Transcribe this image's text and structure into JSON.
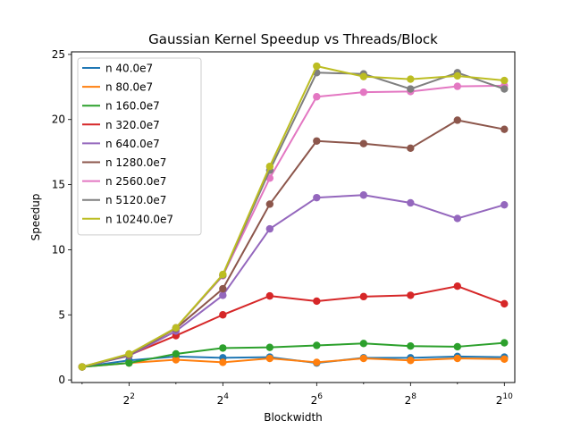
{
  "chart_data": {
    "type": "line",
    "title": "Gaussian Kernel Speedup vs Threads/Block",
    "xlabel": "Blockwidth",
    "ylabel": "Speedup",
    "x_scale": "log2",
    "x": [
      2,
      4,
      8,
      16,
      32,
      64,
      128,
      256,
      512,
      1024
    ],
    "xlim": [
      1.71,
      1195
    ],
    "ylim": [
      -0.2,
      25.2
    ],
    "x_ticks": [
      {
        "value": 4,
        "base": "2",
        "exp": "2"
      },
      {
        "value": 16,
        "base": "2",
        "exp": "4"
      },
      {
        "value": 64,
        "base": "2",
        "exp": "6"
      },
      {
        "value": 256,
        "base": "2",
        "exp": "8"
      },
      {
        "value": 1024,
        "base": "2",
        "exp": "10"
      }
    ],
    "y_ticks": [
      0,
      5,
      10,
      15,
      20,
      25
    ],
    "grid": false,
    "legend_position": "upper left",
    "series": [
      {
        "name": "n 40.0e7",
        "color": "#1f77b4",
        "values": [
          1.0,
          1.5,
          1.8,
          1.7,
          1.75,
          1.3,
          1.7,
          1.7,
          1.8,
          1.75
        ]
      },
      {
        "name": "n 80.0e7",
        "color": "#ff7f0e",
        "values": [
          1.0,
          1.3,
          1.55,
          1.35,
          1.65,
          1.35,
          1.65,
          1.5,
          1.65,
          1.6
        ]
      },
      {
        "name": "n 160.0e7",
        "color": "#2ca02c",
        "values": [
          1.0,
          1.3,
          2.0,
          2.45,
          2.5,
          2.65,
          2.8,
          2.6,
          2.55,
          2.85
        ]
      },
      {
        "name": "n 320.0e7",
        "color": "#d62728",
        "values": [
          1.0,
          1.9,
          3.4,
          5.0,
          6.45,
          6.05,
          6.4,
          6.5,
          7.2,
          5.85
        ]
      },
      {
        "name": "n 640.0e7",
        "color": "#9467bd",
        "values": [
          1.0,
          1.85,
          3.75,
          6.5,
          11.6,
          14.0,
          14.2,
          13.6,
          12.4,
          13.45
        ]
      },
      {
        "name": "n 1280.0e7",
        "color": "#8c564b",
        "values": [
          1.0,
          1.9,
          3.95,
          7.0,
          13.5,
          18.35,
          18.15,
          17.8,
          19.95,
          19.25
        ]
      },
      {
        "name": "n 2560.0e7",
        "color": "#e377c2",
        "values": [
          1.0,
          1.95,
          4.0,
          8.0,
          15.5,
          21.75,
          22.1,
          22.15,
          22.55,
          22.6
        ]
      },
      {
        "name": "n 5120.0e7",
        "color": "#7f7f7f",
        "values": [
          1.0,
          1.95,
          4.0,
          8.05,
          16.1,
          23.6,
          23.5,
          22.35,
          23.6,
          22.35
        ]
      },
      {
        "name": "n 10240.0e7",
        "color": "#bcbd22",
        "values": [
          1.0,
          2.0,
          4.0,
          8.1,
          16.4,
          24.1,
          23.3,
          23.1,
          23.35,
          23.0
        ]
      }
    ]
  }
}
